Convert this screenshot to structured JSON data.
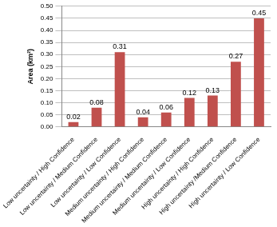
{
  "chart_data": {
    "type": "bar",
    "y_label": "Area (km²)",
    "categories": [
      "Low uncertainty / High Confidence",
      "Low uncertainty / Medium Confidence",
      "Low uncertainty / Low Confidence",
      "Medium uncertainty / High Confidence",
      "Medium uncertainty / Medium Confidence",
      "Medium uncertainty / Low Confidence",
      "High uncertainty / High Confidence",
      "High uncertainty /Medium Confidence",
      "High uncertainty / Low Confidence"
    ],
    "values": [
      0.02,
      0.08,
      0.31,
      0.04,
      0.06,
      0.12,
      0.13,
      0.27,
      0.45
    ],
    "color": "#c0504d",
    "ylim": [
      0,
      0.5
    ],
    "yticks": [
      {
        "value": 0,
        "label": "0.00"
      },
      {
        "value": 0.05,
        "label": "0.05"
      },
      {
        "value": 0.1,
        "label": "0.10"
      },
      {
        "value": 0.15,
        "label": "0.15"
      },
      {
        "value": 0.2,
        "label": "0.20"
      },
      {
        "value": 0.25,
        "label": "0.25"
      },
      {
        "value": 0.3,
        "label": "0.30"
      },
      {
        "value": 0.35,
        "label": "0.35"
      },
      {
        "value": 0.4,
        "label": "0.40"
      },
      {
        "value": 0.45,
        "label": "0.45"
      },
      {
        "value": 0.5,
        "label": "0.50"
      }
    ],
    "grid": true,
    "data_labels": true
  }
}
